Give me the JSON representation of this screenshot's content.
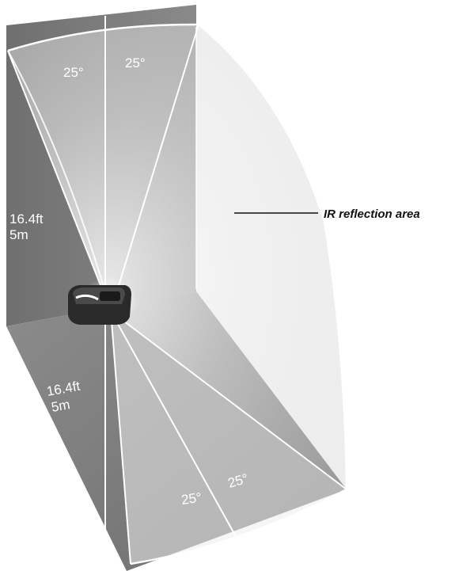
{
  "labels": {
    "top_angle_left": "25°",
    "top_angle_right": "25°",
    "bottom_angle_left": "25°",
    "bottom_angle_right": "25°",
    "wall_distance_ft": "16.4ft",
    "wall_distance_m": "5m",
    "floor_distance_ft": "16.4ft",
    "floor_distance_m": "5m",
    "callout": "IR reflection area"
  },
  "colors": {
    "wall": "#7b7b7b",
    "floor": "#808080",
    "beam": "#f2f2f2",
    "label_text": "#ffffff",
    "callout_text": "#111111"
  }
}
